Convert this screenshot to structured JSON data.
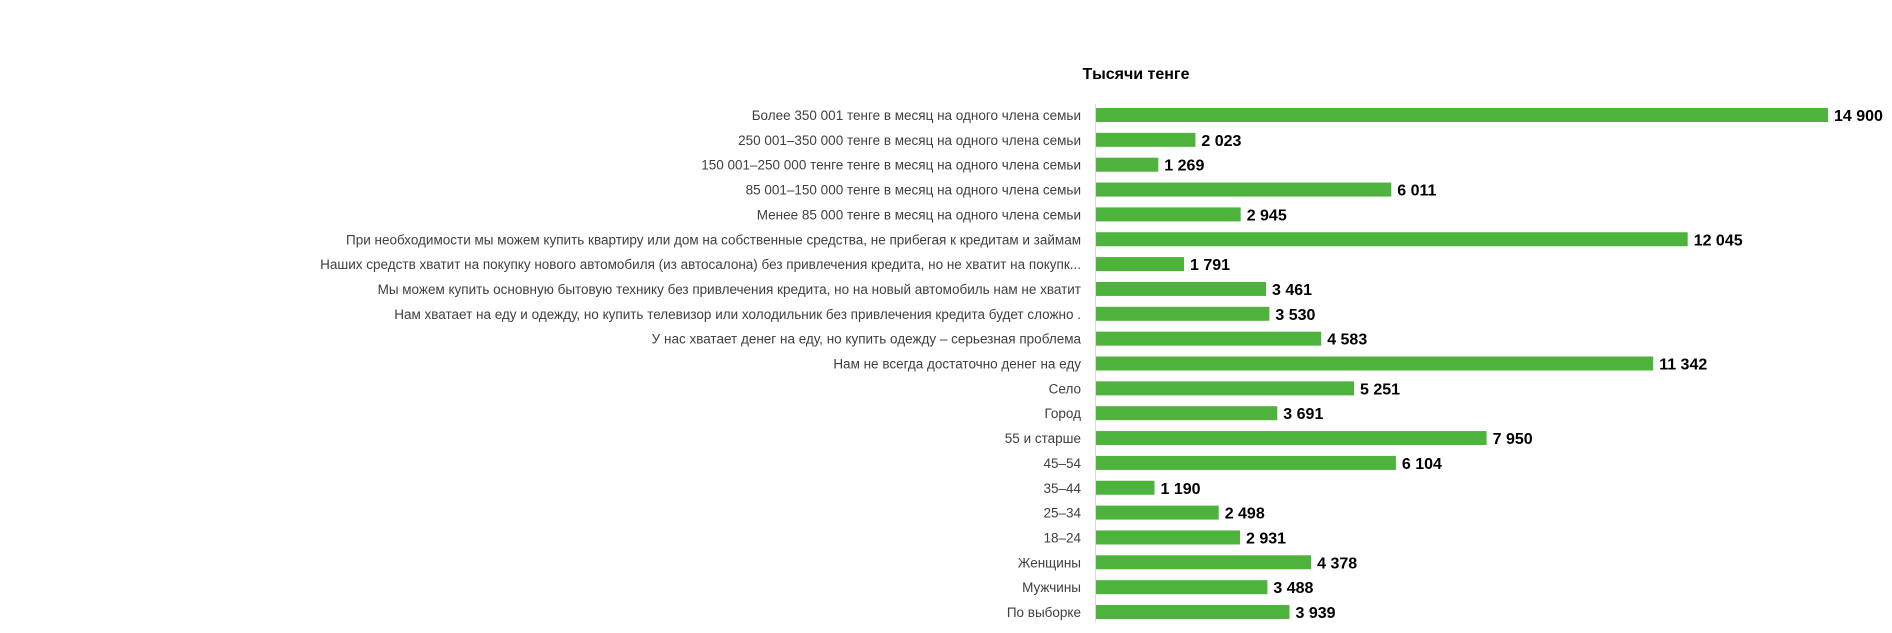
{
  "chart_data": {
    "type": "bar",
    "orientation": "horizontal",
    "title": "Тысячи тенге",
    "xlabel": "",
    "ylabel": "",
    "xlim": [
      0,
      14900
    ],
    "grid": false,
    "legend": "none",
    "bar_color": "#4db33d",
    "categories": [
      "Более 350 001 тенге в месяц на одного члена семьи",
      "250 001–350 000 тенге в месяц на одного члена семьи",
      "150 001–250 000 тенге тенге в месяц на одного члена семьи",
      "85 001–150 000 тенге в месяц на одного члена семьи",
      "Менее 85 000 тенге в месяц на одного члена семьи",
      "При необходимости мы можем купить квартиру или дом на собственные средства, не прибегая к кредитам и займам",
      "Наших средств хватит на покупку нового автомобиля (из автосалона) без привлечения кредита, но не хватит на покупк...",
      "Мы можем купить основную бытовую технику без привлечения кредита, но на новый автомобиль нам не хватит",
      "Нам хватает на еду и одежду, но купить телевизор или холодильник без привлечения кредита будет сложно .",
      "У нас хватает денег на еду, но купить одежду – серьезная проблема",
      "Нам не всегда достаточно денег на еду",
      "Село",
      "Город",
      "55 и старше",
      "45–54",
      "35–44",
      "25–34",
      "18–24",
      "Женщины",
      "Мужчины",
      "По выборке"
    ],
    "values": [
      14900,
      2023,
      1269,
      6011,
      2945,
      12045,
      1791,
      3461,
      3530,
      4583,
      11342,
      5251,
      3691,
      7950,
      6104,
      1190,
      2498,
      2931,
      4378,
      3488,
      3939
    ],
    "value_labels": [
      "14 900",
      "2 023",
      "1 269",
      "6 011",
      "2 945",
      "12 045",
      "1 791",
      "3 461",
      "3 530",
      "4 583",
      "11 342",
      "5 251",
      "3 691",
      "7 950",
      "6 104",
      "1 190",
      "2 498",
      "2 931",
      "4 378",
      "3 488",
      "3 939"
    ]
  }
}
